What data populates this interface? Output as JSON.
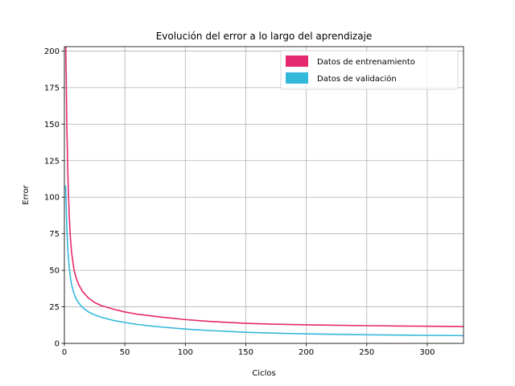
{
  "chart_data": {
    "type": "line",
    "title": "Evolución del error a lo largo del aprendizaje",
    "xlabel": "Ciclos",
    "ylabel": "Error",
    "xlim": [
      0,
      330
    ],
    "ylim": [
      0,
      203
    ],
    "xticks": [
      0,
      50,
      100,
      150,
      200,
      250,
      300
    ],
    "yticks": [
      0,
      25,
      50,
      75,
      100,
      125,
      150,
      175,
      200
    ],
    "grid": true,
    "legend_position": "top-right",
    "series": [
      {
        "name": "Datos de entrenamiento",
        "color": "#e6286e",
        "x": [
          1,
          2,
          3,
          4,
          5,
          6,
          8,
          10,
          12,
          15,
          20,
          25,
          30,
          40,
          50,
          60,
          70,
          80,
          100,
          120,
          150,
          175,
          200,
          250,
          300,
          330
        ],
        "y": [
          215,
          150,
          112,
          88,
          72,
          62,
          50,
          44,
          40,
          35.5,
          31,
          28,
          26,
          23.5,
          21.5,
          20,
          19,
          18,
          16.3,
          15,
          13.7,
          13.1,
          12.7,
          12.1,
          11.7,
          11.5
        ]
      },
      {
        "name": "Datos de validación",
        "color": "#33b8dc",
        "x": [
          1,
          2,
          3,
          4,
          5,
          6,
          8,
          10,
          12,
          15,
          20,
          25,
          30,
          40,
          50,
          60,
          70,
          80,
          100,
          120,
          150,
          175,
          200,
          250,
          300,
          330
        ],
        "y": [
          108,
          80,
          62,
          52,
          45,
          40,
          34,
          30,
          27.5,
          24.5,
          21.5,
          19.5,
          18,
          15.8,
          14.3,
          13,
          12,
          11.2,
          9.8,
          8.8,
          7.6,
          7,
          6.5,
          5.9,
          5.5,
          5.3
        ]
      }
    ]
  }
}
